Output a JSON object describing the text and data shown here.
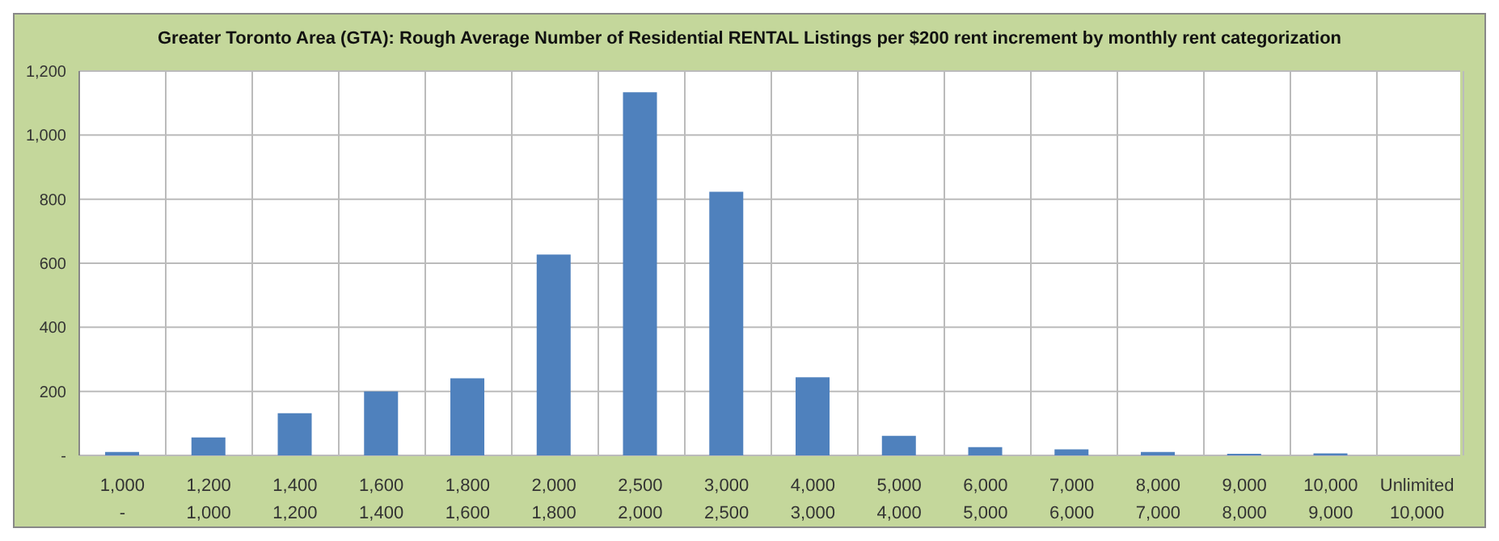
{
  "chart_data": {
    "type": "bar",
    "title": "Greater Toronto Area (GTA): Rough Average Number of Residential RENTAL Listings per $200 rent increment by monthly rent categorization",
    "categories": [
      "1,000\n-",
      "1,200\n1,000",
      "1,400\n1,200",
      "1,600\n1,400",
      "1,800\n1,600",
      "2,000\n1,800",
      "2,500\n2,000",
      "3,000\n2,500",
      "4,000\n3,000",
      "5,000\n4,000",
      "6,000\n5,000",
      "7,000\n6,000",
      "8,000\n7,000",
      "9,000\n8,000",
      "10,000\n9,000",
      "Unlimited\n10,000"
    ],
    "values": [
      11,
      56,
      132,
      200,
      241,
      627,
      1134,
      823,
      244,
      61,
      26,
      19,
      11,
      5,
      6,
      0
    ],
    "color": "#4f81bd",
    "ylim": [
      0,
      1200
    ],
    "yticks": [
      {
        "value": 0,
        "label": "-"
      },
      200,
      400,
      600,
      800,
      "1,000",
      "1,200"
    ],
    "grid": true,
    "legend": false
  }
}
